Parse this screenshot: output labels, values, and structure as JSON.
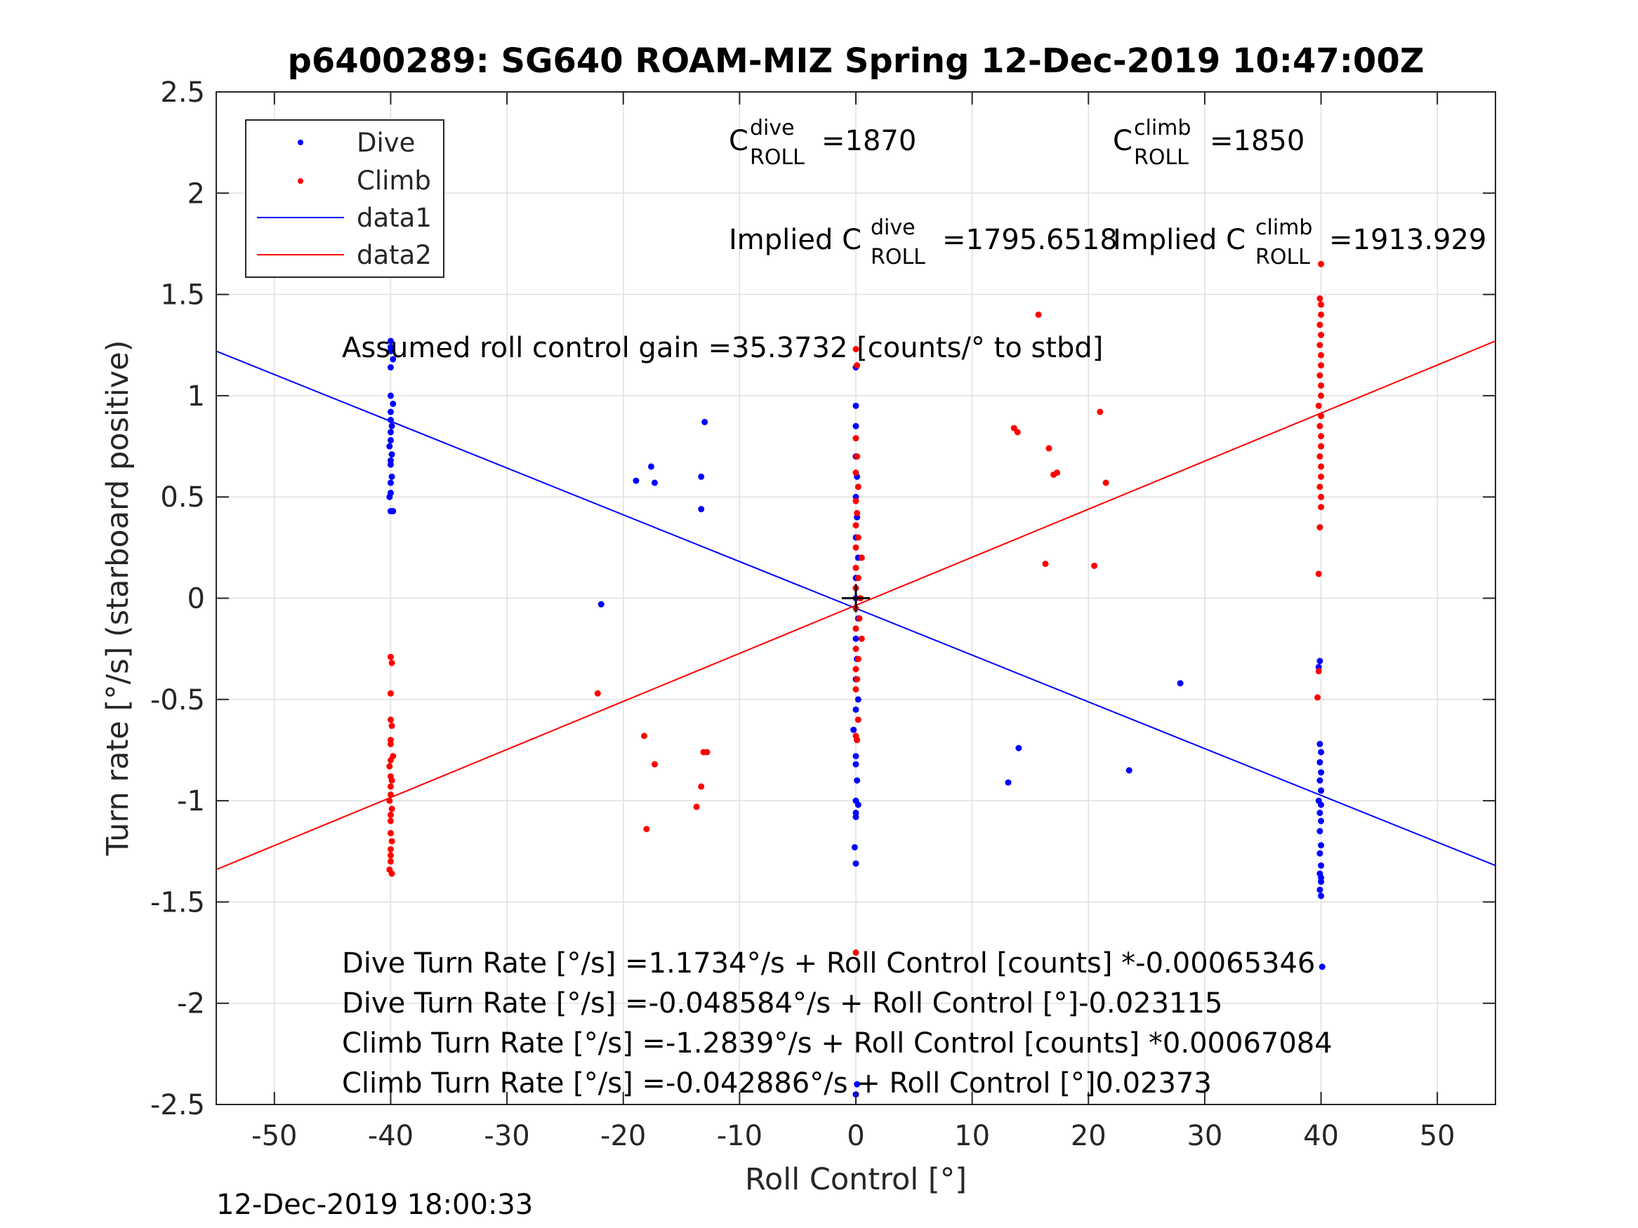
{
  "chart_data": {
    "type": "scatter",
    "title": "p6400289: SG640 ROAM-MIZ Spring 12-Dec-2019 10:47:00Z",
    "xlabel": "Roll Control [°]",
    "ylabel": "Turn rate [°/s] (starboard positive)",
    "xlim": [
      -55,
      55
    ],
    "ylim": [
      -2.5,
      2.5
    ],
    "xticks": [
      -50,
      -40,
      -30,
      -20,
      -10,
      0,
      10,
      20,
      30,
      40,
      50
    ],
    "xtick_labels": [
      "-50",
      "-40",
      "-30",
      "-20",
      "-10",
      "0",
      "10",
      "20",
      "30",
      "40",
      "50"
    ],
    "yticks": [
      -2.5,
      -2,
      -1.5,
      -1,
      -0.5,
      0,
      0.5,
      1,
      1.5,
      2,
      2.5
    ],
    "ytick_labels": [
      "-2.5",
      "-2",
      "-1.5",
      "-1",
      "-0.5",
      "0",
      "0.5",
      "1",
      "1.5",
      "2",
      "2.5"
    ],
    "grid": true,
    "legend_position": "top-left",
    "legend": [
      "Dive",
      "Climb",
      "data1",
      "data2"
    ],
    "colors": {
      "dive": "#0000ff",
      "climb": "#ff0000",
      "marker": "#000000",
      "axis": "#262626",
      "grid": "#e0e0e0"
    },
    "series": [
      {
        "name": "Dive",
        "kind": "points",
        "color": "#0000ff",
        "points": [
          [
            -40,
            1.27
          ],
          [
            -40,
            1.24
          ],
          [
            -40,
            1.22
          ],
          [
            -39.8,
            1.18
          ],
          [
            -40,
            1.14
          ],
          [
            -40,
            1.0
          ],
          [
            -39.8,
            0.96
          ],
          [
            -40,
            0.92
          ],
          [
            -40,
            0.88
          ],
          [
            -39.9,
            0.85
          ],
          [
            -40,
            0.82
          ],
          [
            -40,
            0.78
          ],
          [
            -40.1,
            0.75
          ],
          [
            -39.9,
            0.71
          ],
          [
            -40,
            0.68
          ],
          [
            -40,
            0.66
          ],
          [
            -39.9,
            0.6
          ],
          [
            -40,
            0.57
          ],
          [
            -40,
            0.52
          ],
          [
            -40.1,
            0.5
          ],
          [
            -40,
            0.43
          ],
          [
            -39.8,
            0.43
          ],
          [
            -21.9,
            -0.03
          ],
          [
            -18.9,
            0.58
          ],
          [
            -17.6,
            0.65
          ],
          [
            -17.3,
            0.57
          ],
          [
            -13.3,
            0.6
          ],
          [
            -13.3,
            0.44
          ],
          [
            -13.0,
            0.87
          ],
          [
            0,
            1.14
          ],
          [
            0,
            0.95
          ],
          [
            0,
            0.85
          ],
          [
            0,
            0.7
          ],
          [
            0.1,
            0.6
          ],
          [
            0,
            0.5
          ],
          [
            0.1,
            0.4
          ],
          [
            0,
            0.3
          ],
          [
            0.2,
            0.2
          ],
          [
            0,
            0.1
          ],
          [
            0,
            0.0
          ],
          [
            0.2,
            -0.1
          ],
          [
            0,
            -0.2
          ],
          [
            0.1,
            -0.3
          ],
          [
            0,
            -0.4
          ],
          [
            0.2,
            -0.5
          ],
          [
            0,
            -0.55
          ],
          [
            -0.2,
            -0.65
          ],
          [
            0.1,
            -0.7
          ],
          [
            0,
            -0.78
          ],
          [
            0,
            -0.82
          ],
          [
            0.1,
            -0.9
          ],
          [
            0,
            -1.0
          ],
          [
            0.2,
            -1.02
          ],
          [
            0,
            -1.06
          ],
          [
            0,
            -1.08
          ],
          [
            -0.1,
            -1.23
          ],
          [
            0,
            -1.31
          ],
          [
            0.1,
            -2.4
          ],
          [
            0,
            -2.45
          ],
          [
            13.1,
            -0.91
          ],
          [
            14.0,
            -0.74
          ],
          [
            23.5,
            -0.85
          ],
          [
            27.9,
            -0.42
          ],
          [
            39.9,
            -0.31
          ],
          [
            39.8,
            -0.34
          ],
          [
            39.9,
            -0.72
          ],
          [
            40,
            -0.76
          ],
          [
            39.9,
            -0.81
          ],
          [
            40,
            -0.86
          ],
          [
            39.9,
            -0.9
          ],
          [
            40,
            -0.95
          ],
          [
            39.8,
            -1.0
          ],
          [
            40,
            -1.02
          ],
          [
            39.9,
            -1.06
          ],
          [
            40,
            -1.1
          ],
          [
            39.9,
            -1.15
          ],
          [
            40,
            -1.22
          ],
          [
            39.9,
            -1.26
          ],
          [
            40,
            -1.32
          ],
          [
            39.9,
            -1.36
          ],
          [
            40,
            -1.38
          ],
          [
            40,
            -1.4
          ],
          [
            39.9,
            -1.44
          ],
          [
            40,
            -1.47
          ],
          [
            40.1,
            -1.82
          ]
        ]
      },
      {
        "name": "Climb",
        "kind": "points",
        "color": "#ff0000",
        "points": [
          [
            -40,
            -0.29
          ],
          [
            -39.9,
            -0.32
          ],
          [
            -40,
            -0.47
          ],
          [
            -40,
            -0.6
          ],
          [
            -39.9,
            -0.63
          ],
          [
            -40,
            -0.7
          ],
          [
            -40,
            -0.72
          ],
          [
            -39.8,
            -0.78
          ],
          [
            -40,
            -0.8
          ],
          [
            -40.1,
            -0.83
          ],
          [
            -40,
            -0.88
          ],
          [
            -39.9,
            -0.9
          ],
          [
            -40,
            -0.93
          ],
          [
            -40,
            -0.97
          ],
          [
            -40.1,
            -1.0
          ],
          [
            -39.9,
            -1.04
          ],
          [
            -40,
            -1.07
          ],
          [
            -40,
            -1.1
          ],
          [
            -40,
            -1.16
          ],
          [
            -39.9,
            -1.2
          ],
          [
            -40,
            -1.24
          ],
          [
            -40,
            -1.27
          ],
          [
            -40,
            -1.3
          ],
          [
            -40.1,
            -1.34
          ],
          [
            -39.9,
            -1.36
          ],
          [
            -22.2,
            -0.47
          ],
          [
            -18.2,
            -0.68
          ],
          [
            -18.0,
            -1.14
          ],
          [
            -17.3,
            -0.82
          ],
          [
            -13.7,
            -1.03
          ],
          [
            -13.3,
            -0.93
          ],
          [
            -13.1,
            -0.76
          ],
          [
            -12.8,
            -0.76
          ],
          [
            0,
            1.23
          ],
          [
            0.1,
            1.15
          ],
          [
            0,
            0.79
          ],
          [
            0.1,
            0.7
          ],
          [
            0,
            0.62
          ],
          [
            0.2,
            0.55
          ],
          [
            0,
            0.48
          ],
          [
            0.1,
            0.42
          ],
          [
            0,
            0.36
          ],
          [
            0.2,
            0.3
          ],
          [
            0,
            0.25
          ],
          [
            0.5,
            0.2
          ],
          [
            0,
            0.15
          ],
          [
            0.2,
            0.1
          ],
          [
            0,
            0.05
          ],
          [
            0.4,
            0.0
          ],
          [
            0,
            -0.05
          ],
          [
            0.3,
            -0.1
          ],
          [
            0,
            -0.15
          ],
          [
            0.5,
            -0.2
          ],
          [
            0,
            -0.25
          ],
          [
            0.2,
            -0.3
          ],
          [
            0,
            -0.35
          ],
          [
            0.1,
            -0.4
          ],
          [
            0,
            -0.45
          ],
          [
            0.2,
            -0.6
          ],
          [
            0,
            -0.68
          ],
          [
            0.1,
            -0.7
          ],
          [
            0,
            -1.75
          ],
          [
            13.6,
            0.84
          ],
          [
            13.9,
            0.82
          ],
          [
            16.3,
            0.17
          ],
          [
            16.6,
            0.74
          ],
          [
            17.0,
            0.61
          ],
          [
            17.3,
            0.62
          ],
          [
            15.7,
            1.4
          ],
          [
            20.5,
            0.16
          ],
          [
            21.0,
            0.92
          ],
          [
            21.5,
            0.57
          ],
          [
            40,
            1.65
          ],
          [
            39.9,
            1.48
          ],
          [
            40,
            1.45
          ],
          [
            40,
            1.4
          ],
          [
            39.9,
            1.35
          ],
          [
            40,
            1.3
          ],
          [
            39.9,
            1.25
          ],
          [
            40,
            1.2
          ],
          [
            40,
            1.15
          ],
          [
            39.9,
            1.1
          ],
          [
            40,
            1.05
          ],
          [
            40,
            1.0
          ],
          [
            39.8,
            0.95
          ],
          [
            40,
            0.9
          ],
          [
            39.9,
            0.85
          ],
          [
            40,
            0.8
          ],
          [
            40,
            0.75
          ],
          [
            39.9,
            0.7
          ],
          [
            40,
            0.65
          ],
          [
            40,
            0.6
          ],
          [
            39.9,
            0.55
          ],
          [
            40,
            0.5
          ],
          [
            40,
            0.45
          ],
          [
            39.9,
            0.35
          ],
          [
            39.8,
            0.12
          ],
          [
            39.8,
            -0.36
          ],
          [
            39.7,
            -0.49
          ]
        ]
      },
      {
        "name": "data1",
        "kind": "line",
        "color": "#0000ff",
        "x": [
          -55,
          55
        ],
        "y": [
          1.22,
          -1.32
        ]
      },
      {
        "name": "data2",
        "kind": "line",
        "color": "#ff0000",
        "x": [
          -55,
          55
        ],
        "y": [
          -1.34,
          1.27
        ]
      }
    ],
    "center_marker": [
      0,
      0
    ],
    "annotations": {
      "c_dive_prefix": "C",
      "c_dive_sup": "dive",
      "c_dive_sub": "ROLL",
      "c_dive_value": "=1870",
      "c_climb_prefix": "C",
      "c_climb_sup": "climb",
      "c_climb_sub": "ROLL",
      "c_climb_value": "=1850",
      "implied_dive_prefix": "Implied C",
      "implied_dive_sup": "dive",
      "implied_dive_sub": "ROLL",
      "implied_dive_value": "=1795.6518",
      "implied_climb_prefix": "Implied C",
      "implied_climb_sup": "climb",
      "implied_climb_sub": "ROLL",
      "implied_climb_value": "=1913.929",
      "gain": "Assumed roll control gain =35.3732 [counts/° to stbd]",
      "fit_1": "Dive Turn Rate [°/s] =1.1734°/s + Roll Control [counts] *-0.00065346",
      "fit_2": "Dive Turn Rate [°/s] =-0.048584°/s + Roll Control [°]-0.023115",
      "fit_3": "Climb Turn Rate [°/s] =-1.2839°/s + Roll Control [counts] *0.00067084",
      "fit_4": "Climb Turn Rate [°/s] =-0.042886°/s + Roll Control [°]0.02373"
    },
    "timestamp": "12-Dec-2019 18:00:33"
  }
}
